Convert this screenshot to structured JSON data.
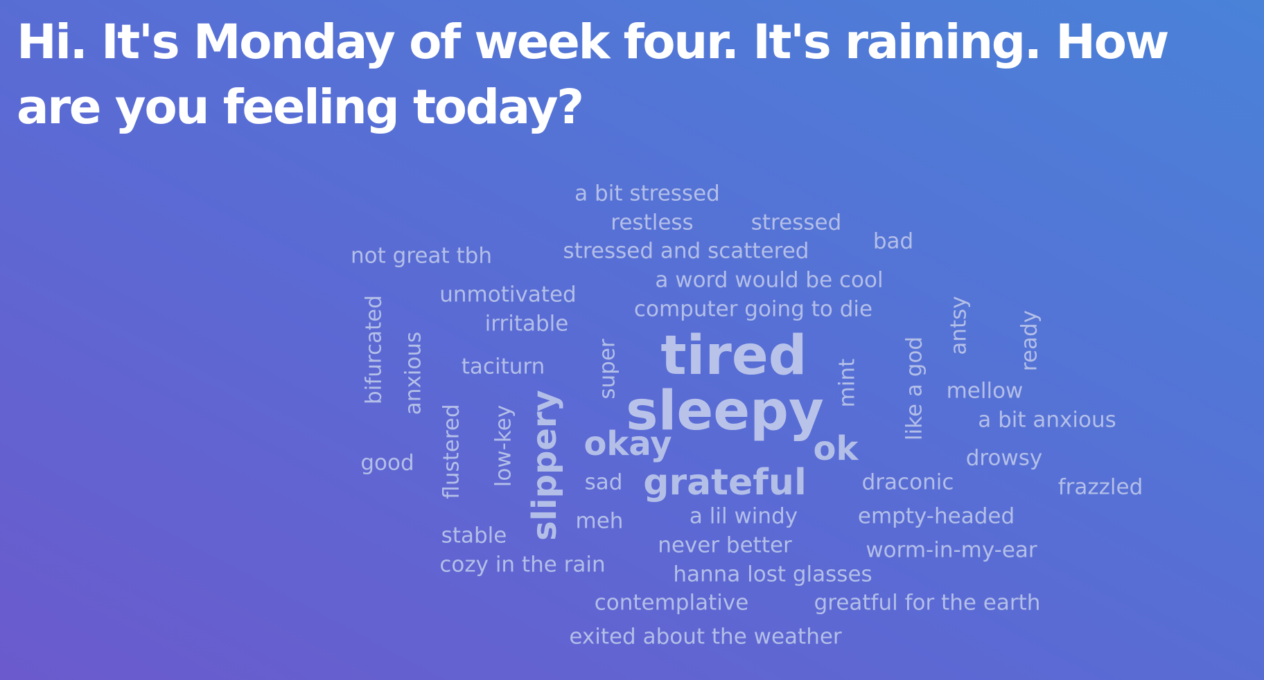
{
  "prompt": "Hi. It's Monday of week four. It's raining. How are you feeling today?",
  "colors": {
    "word": "#b4bfe8",
    "prompt": "#ffffff",
    "bg_start": "#6b5acd",
    "bg_end": "#4a82d8"
  },
  "words": {
    "a_bit_stressed": "a bit stressed",
    "restless": "restless",
    "stressed": "stressed",
    "bad": "bad",
    "not_great_tbh": "not great tbh",
    "stressed_and_scattered": "stressed and scattered",
    "a_word_would_be_cool": "a word would be cool",
    "unmotivated": "unmotivated",
    "computer_going_to_die": "computer going to die",
    "irritable": "irritable",
    "bifurcated": "bifurcated",
    "anxious": "anxious",
    "taciturn": "taciturn",
    "super": "super",
    "tired": "tired",
    "mint": "mint",
    "like_a_god": "like a god",
    "antsy": "antsy",
    "ready": "ready",
    "mellow": "mellow",
    "sleepy": "sleepy",
    "a_bit_anxious": "a bit anxious",
    "flustered": "flustered",
    "low_key": "low-key",
    "slippery": "slippery",
    "okay": "okay",
    "ok": "ok",
    "good": "good",
    "drowsy": "drowsy",
    "sad": "sad",
    "grateful": "grateful",
    "draconic": "draconic",
    "frazzled": "frazzled",
    "meh": "meh",
    "a_lil_windy": "a lil windy",
    "empty_headed": "empty-headed",
    "stable": "stable",
    "never_better": "never better",
    "worm_in_my_ear": "worm-in-my-ear",
    "cozy_in_the_rain": "cozy in the rain",
    "hanna_lost_glasses": "hanna lost glasses",
    "contemplative": "contemplative",
    "greatful_for_the_earth": "greatful for the earth",
    "exited_about_the_weather": "exited about the weather"
  }
}
